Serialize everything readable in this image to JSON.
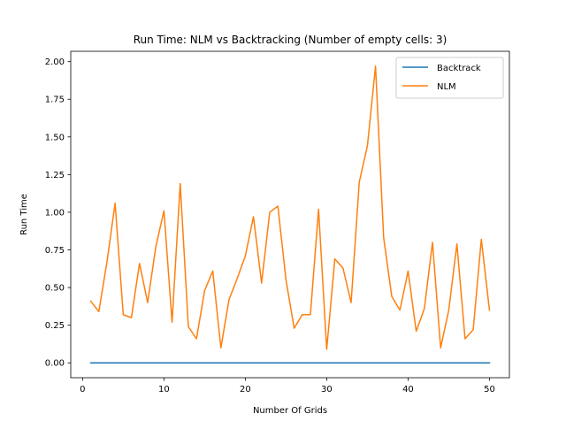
{
  "chart_data": {
    "type": "line",
    "title": "Run Time: NLM vs Backtracking (Number of empty cells: 3)",
    "xlabel": "Number Of Grids",
    "ylabel": "Run Time",
    "xlim": [
      -1.45,
      52.45
    ],
    "ylim": [
      -0.0985,
      2.0685
    ],
    "xticks": [
      0,
      10,
      20,
      30,
      40,
      50
    ],
    "yticks": [
      0.0,
      0.25,
      0.5,
      0.75,
      1.0,
      1.25,
      1.5,
      1.75,
      2.0
    ],
    "xtick_labels": [
      "0",
      "10",
      "20",
      "30",
      "40",
      "50"
    ],
    "ytick_labels": [
      "0.00",
      "0.25",
      "0.50",
      "0.75",
      "1.00",
      "1.25",
      "1.50",
      "1.75",
      "2.00"
    ],
    "grid": false,
    "legend_position": "upper right",
    "x": [
      1,
      2,
      3,
      4,
      5,
      6,
      7,
      8,
      9,
      10,
      11,
      12,
      13,
      14,
      15,
      16,
      17,
      18,
      19,
      20,
      21,
      22,
      23,
      24,
      25,
      26,
      27,
      28,
      29,
      30,
      31,
      32,
      33,
      34,
      35,
      36,
      37,
      38,
      39,
      40,
      41,
      42,
      43,
      44,
      45,
      46,
      47,
      48,
      49,
      50
    ],
    "series": [
      {
        "name": "Backtrack",
        "color": "#1f77b4",
        "values": [
          0,
          0,
          0,
          0,
          0,
          0,
          0,
          0,
          0,
          0,
          0,
          0,
          0,
          0,
          0,
          0,
          0,
          0,
          0,
          0,
          0,
          0,
          0,
          0,
          0,
          0,
          0,
          0,
          0,
          0,
          0,
          0,
          0,
          0,
          0,
          0,
          0,
          0,
          0,
          0,
          0,
          0,
          0,
          0,
          0,
          0,
          0,
          0,
          0,
          0
        ]
      },
      {
        "name": "NLM",
        "color": "#ff7f0e",
        "values": [
          0.41,
          0.34,
          0.67,
          1.06,
          0.32,
          0.3,
          0.66,
          0.4,
          0.77,
          1.01,
          0.27,
          1.19,
          0.24,
          0.16,
          0.48,
          0.61,
          0.1,
          0.42,
          0.56,
          0.71,
          0.97,
          0.53,
          1.0,
          1.04,
          0.55,
          0.23,
          0.32,
          0.32,
          1.02,
          0.09,
          0.69,
          0.63,
          0.4,
          1.2,
          1.44,
          1.97,
          0.83,
          0.44,
          0.35,
          0.61,
          0.21,
          0.36,
          0.8,
          0.1,
          0.35,
          0.79,
          0.16,
          0.22,
          0.82,
          0.35
        ]
      }
    ]
  }
}
